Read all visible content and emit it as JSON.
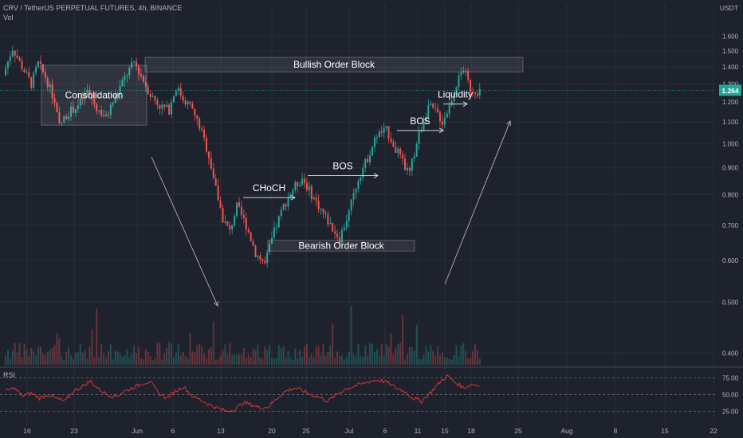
{
  "header": {
    "symbol_line": "CRV / TetherUS PERPETUAL FUTURES, 4h, BINANCE",
    "volume_label": "Vol",
    "unit_label": "USDT",
    "rsi_label": "RSI"
  },
  "colors": {
    "background": "#1e222d",
    "bull": "#26a69a",
    "bear": "#ef5350",
    "rsi_line": "#e53935",
    "price_tag": "#26a69a",
    "box_fill": "#ffffff",
    "arrow": "#b2b5be"
  },
  "chart_data": [
    {
      "type": "candlestick",
      "y_scale": "log",
      "ylim": [
        0.38,
        1.72
      ],
      "y_ticks": [
        "1.600",
        "1.500",
        "1.400",
        "1.300",
        "1.200",
        "1.100",
        "1.000",
        "0.900",
        "0.800",
        "0.700",
        "0.600",
        "0.500",
        "0.400"
      ],
      "x_ticks": [
        "16",
        "23",
        "Jun",
        "6",
        "13",
        "20",
        "25",
        "Jul",
        "6",
        "11",
        "15",
        "18",
        "25",
        "Aug",
        "8",
        "15",
        "22"
      ],
      "last_price": "1.264",
      "price_path": [
        [
          0,
          1.35
        ],
        [
          4,
          1.52
        ],
        [
          8,
          1.4
        ],
        [
          12,
          1.3
        ],
        [
          15,
          1.42
        ],
        [
          18,
          1.34
        ],
        [
          21,
          1.24
        ],
        [
          24,
          1.08
        ],
        [
          28,
          1.15
        ],
        [
          32,
          1.18
        ],
        [
          36,
          1.26
        ],
        [
          40,
          1.17
        ],
        [
          44,
          1.12
        ],
        [
          47,
          1.2
        ],
        [
          50,
          1.28
        ],
        [
          53,
          1.36
        ],
        [
          56,
          1.43
        ],
        [
          60,
          1.32
        ],
        [
          63,
          1.24
        ],
        [
          67,
          1.18
        ],
        [
          71,
          1.16
        ],
        [
          74,
          1.28
        ],
        [
          77,
          1.22
        ],
        [
          80,
          1.18
        ],
        [
          84,
          1.08
        ],
        [
          88,
          0.95
        ],
        [
          91,
          0.82
        ],
        [
          94,
          0.72
        ],
        [
          97,
          0.68
        ],
        [
          100,
          0.76
        ],
        [
          104,
          0.7
        ],
        [
          108,
          0.62
        ],
        [
          112,
          0.59
        ],
        [
          116,
          0.68
        ],
        [
          120,
          0.76
        ],
        [
          124,
          0.82
        ],
        [
          128,
          0.86
        ],
        [
          132,
          0.8
        ],
        [
          136,
          0.75
        ],
        [
          140,
          0.7
        ],
        [
          144,
          0.66
        ],
        [
          148,
          0.74
        ],
        [
          152,
          0.86
        ],
        [
          156,
          0.94
        ],
        [
          160,
          1.04
        ],
        [
          164,
          1.06
        ],
        [
          168,
          0.98
        ],
        [
          172,
          0.9
        ],
        [
          174,
          0.88
        ],
        [
          178,
          1.04
        ],
        [
          182,
          1.18
        ],
        [
          186,
          1.14
        ],
        [
          188,
          1.1
        ],
        [
          191,
          1.18
        ],
        [
          194,
          1.3
        ],
        [
          197,
          1.39
        ],
        [
          200,
          1.27
        ],
        [
          203,
          1.26
        ]
      ],
      "annotations": [
        {
          "text": "Bullish Order Block",
          "price_top": 1.46,
          "price_bottom": 1.37
        },
        {
          "text": "Bearish Order Block",
          "price_top": 0.655,
          "price_bottom": 0.625
        },
        {
          "text": "Consolidation",
          "price_top": 1.41,
          "price_bottom": 1.085
        },
        {
          "text": "CHoCH",
          "price_level": 0.79
        },
        {
          "text": "BOS",
          "price_level": 0.87
        },
        {
          "text": "BOS",
          "price_level": 1.06
        },
        {
          "text": "Liquidity",
          "price_level": 1.19
        }
      ]
    },
    {
      "type": "line",
      "name": "RSI",
      "ylim": [
        15,
        85
      ],
      "y_ticks": [
        "75.00",
        "50.00",
        "25.00"
      ],
      "values": [
        55,
        60,
        48,
        52,
        45,
        50,
        44,
        40,
        55,
        62,
        70,
        58,
        50,
        47,
        55,
        60,
        66,
        70,
        52,
        45,
        55,
        62,
        48,
        42,
        35,
        30,
        25,
        28,
        38,
        35,
        30,
        32,
        45,
        55,
        60,
        56,
        50,
        46,
        40,
        50,
        58,
        62,
        66,
        70,
        72,
        68,
        60,
        55,
        45,
        40,
        52,
        66,
        78,
        68,
        60,
        66,
        62
      ]
    }
  ]
}
